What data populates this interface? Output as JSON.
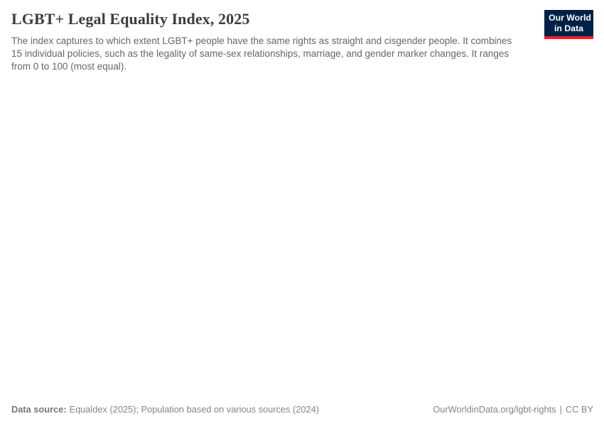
{
  "header": {
    "title": "LGBT+ Legal Equality Index, 2025",
    "subtitle": "The index captures to which extent LGBT+ people have the same rights as straight and cisgender people. It combines 15 individual policies, such as the legality of same-sex relationships, marriage, and gender marker changes. It ranges from 0 to 100 (most equal)."
  },
  "logo": {
    "line1": "Our World",
    "line2": "in Data"
  },
  "footer": {
    "source_label": "Data source:",
    "source_text": "Equaldex (2025); Population based on various sources (2024)",
    "link_text": "OurWorldinData.org/lgbt-rights",
    "separator": "|",
    "license_text": "CC BY"
  },
  "colors": {
    "brandNavy": "#002147",
    "brandRed": "#d6282d",
    "title": "#3d3d3d",
    "subtitle": "#666666",
    "footer": "#858585",
    "footerBold": "#777777"
  },
  "chart_data": {
    "type": "map",
    "title": "LGBT+ Legal Equality Index, 2025",
    "index_range": [
      0,
      100
    ],
    "values": [],
    "note": "Plot area of the chart is blank in the screenshot; no data points, legend, or map shapes are rendered."
  }
}
